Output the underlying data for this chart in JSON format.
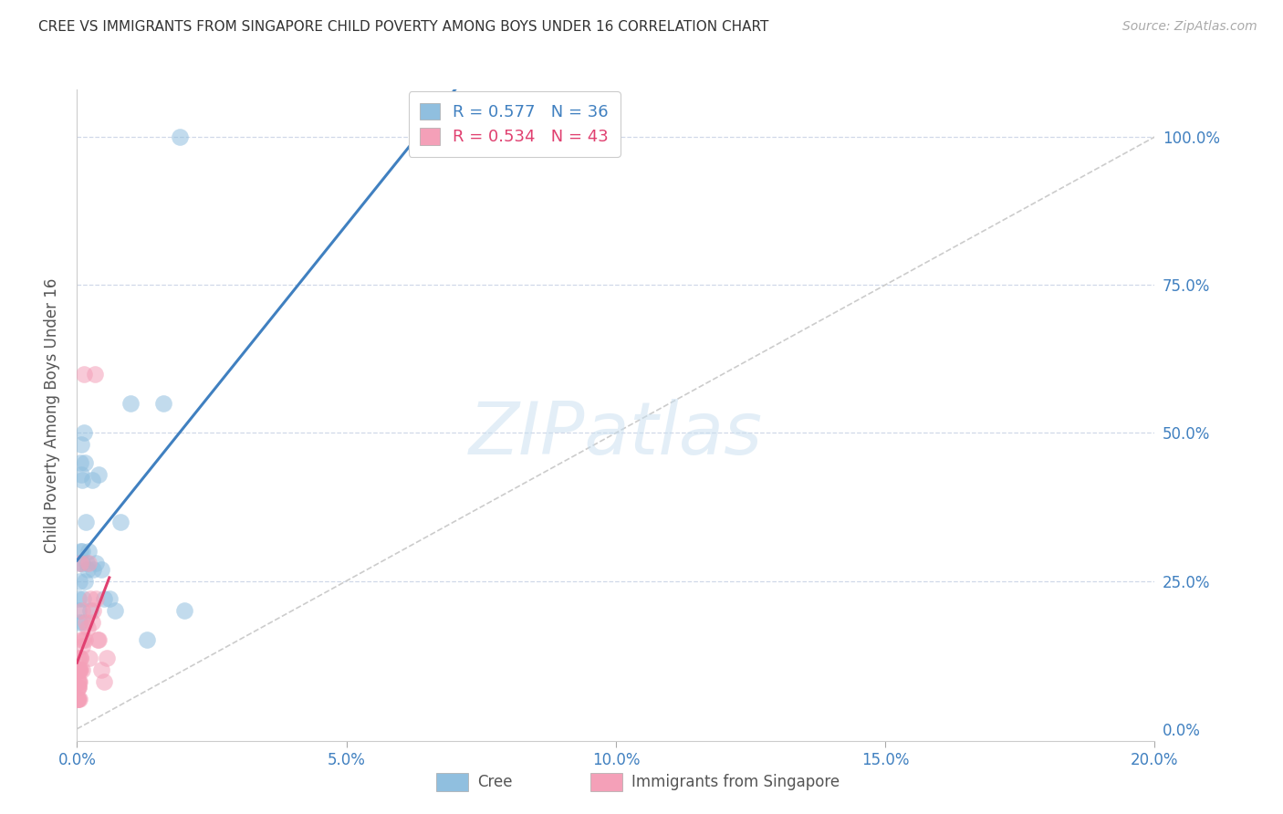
{
  "title": "CREE VS IMMIGRANTS FROM SINGAPORE CHILD POVERTY AMONG BOYS UNDER 16 CORRELATION CHART",
  "source": "Source: ZipAtlas.com",
  "ylabel": "Child Poverty Among Boys Under 16",
  "xlim": [
    0.0,
    0.2
  ],
  "ylim": [
    -0.02,
    1.08
  ],
  "yticks": [
    0.0,
    0.25,
    0.5,
    0.75,
    1.0
  ],
  "ytick_labels": [
    "0.0%",
    "25.0%",
    "50.0%",
    "75.0%",
    "100.0%"
  ],
  "xticks": [
    0.0,
    0.05,
    0.1,
    0.15,
    0.2
  ],
  "xtick_labels": [
    "0.0%",
    "5.0%",
    "10.0%",
    "15.0%",
    "20.0%"
  ],
  "legend_label1": "Cree",
  "legend_label2": "Immigrants from Singapore",
  "R1": "0.577",
  "N1": "36",
  "R2": "0.534",
  "N2": "43",
  "blue_color": "#90bfdf",
  "pink_color": "#f4a0b8",
  "blue_line_color": "#4080c0",
  "pink_line_color": "#e04070",
  "axis_color": "#4080c0",
  "grid_color": "#d0d8e8",
  "ref_line_color": "#cccccc",
  "watermark_color": "#c8dff0",
  "cree_x": [
    0.0002,
    0.0003,
    0.0004,
    0.0005,
    0.0005,
    0.0006,
    0.0007,
    0.0008,
    0.0008,
    0.0009,
    0.001,
    0.001,
    0.0011,
    0.0012,
    0.0013,
    0.0014,
    0.0015,
    0.0016,
    0.0018,
    0.002,
    0.0022,
    0.0025,
    0.0028,
    0.003,
    0.0035,
    0.004,
    0.0045,
    0.005,
    0.006,
    0.007,
    0.008,
    0.01,
    0.013,
    0.016,
    0.02,
    0.019
  ],
  "cree_y": [
    0.2,
    0.22,
    0.25,
    0.18,
    0.28,
    0.3,
    0.45,
    0.48,
    0.43,
    0.42,
    0.28,
    0.3,
    0.22,
    0.18,
    0.5,
    0.45,
    0.25,
    0.35,
    0.28,
    0.27,
    0.3,
    0.2,
    0.42,
    0.27,
    0.28,
    0.43,
    0.27,
    0.22,
    0.22,
    0.2,
    0.35,
    0.55,
    0.15,
    0.55,
    0.2,
    1.0
  ],
  "sing_x": [
    5e-05,
    5e-05,
    7e-05,
    8e-05,
    0.0001,
    0.0001,
    0.0001,
    0.0002,
    0.0002,
    0.0002,
    0.0002,
    0.0003,
    0.0003,
    0.0003,
    0.0004,
    0.0004,
    0.0005,
    0.0005,
    0.0006,
    0.0006,
    0.0007,
    0.0007,
    0.0008,
    0.0009,
    0.001,
    0.001,
    0.0012,
    0.0013,
    0.0015,
    0.0017,
    0.0019,
    0.0021,
    0.0023,
    0.0025,
    0.0028,
    0.003,
    0.0033,
    0.0035,
    0.0038,
    0.004,
    0.0045,
    0.005,
    0.0055
  ],
  "sing_y": [
    0.05,
    0.07,
    0.05,
    0.08,
    0.05,
    0.07,
    0.1,
    0.05,
    0.07,
    0.08,
    0.1,
    0.07,
    0.08,
    0.12,
    0.05,
    0.1,
    0.08,
    0.1,
    0.1,
    0.12,
    0.12,
    0.28,
    0.15,
    0.1,
    0.14,
    0.2,
    0.15,
    0.6,
    0.15,
    0.18,
    0.17,
    0.28,
    0.12,
    0.22,
    0.18,
    0.2,
    0.6,
    0.22,
    0.15,
    0.15,
    0.1,
    0.08,
    0.12
  ],
  "blue_regr": [
    0.0,
    0.2,
    0.21,
    0.65
  ],
  "pink_regr": [
    0.0,
    0.006,
    0.0,
    0.7
  ]
}
